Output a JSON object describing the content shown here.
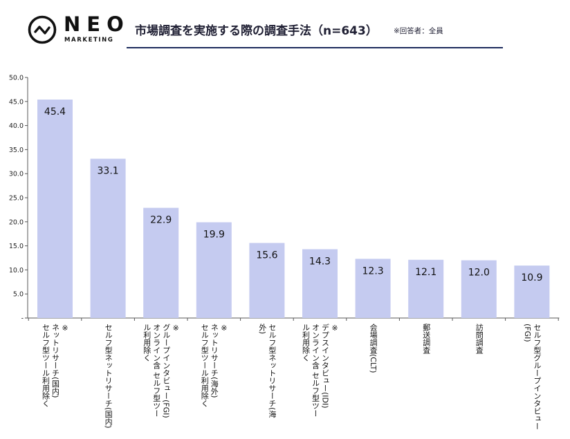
{
  "header": {
    "logo_text": "NEO",
    "logo_subtext": "MARKETING",
    "title": "市場調査を実施する際の調査手法（n=643）",
    "note": "※回答者：全員"
  },
  "colors": {
    "bar": "#c5cbf0",
    "axis": "#555555",
    "header_rule": "#1b2a5c"
  },
  "chart_data": {
    "type": "bar",
    "categories": [
      "※\nネットリサーチ(国内)\nセルフ型ツール利用除く",
      "セルフ型ネットリサーチ(国内)",
      "※\nグループインタビュー(FGI)\nオンライン含 セルフ型ツー\nル利用除く",
      "※\nネットリサーチ(海外)\nセルフ型ツール利用除く",
      "セルフ型ネットリサーチ(海\n外)",
      "※\nデプスインタビュー(IDI)\nオンライン含 セルフ型ツー\nル利用除く",
      "会場調査(CLT)",
      "郵送調査",
      "訪問調査",
      "セルフ型グループインタビュー\n(FGI)"
    ],
    "values": [
      45.4,
      33.1,
      22.9,
      19.9,
      15.6,
      14.3,
      12.3,
      12.1,
      12.0,
      10.9
    ],
    "value_labels": [
      "45.4",
      "33.1",
      "22.9",
      "19.9",
      "15.6",
      "14.3",
      "12.3",
      "12.1",
      "12.0",
      "10.9"
    ],
    "y_ticks": [
      "-",
      "5.0",
      "10.0",
      "15.0",
      "20.0",
      "25.0",
      "30.0",
      "35.0",
      "40.0",
      "45.0",
      "50.0"
    ],
    "ylim": [
      0,
      50
    ],
    "grid": false
  }
}
